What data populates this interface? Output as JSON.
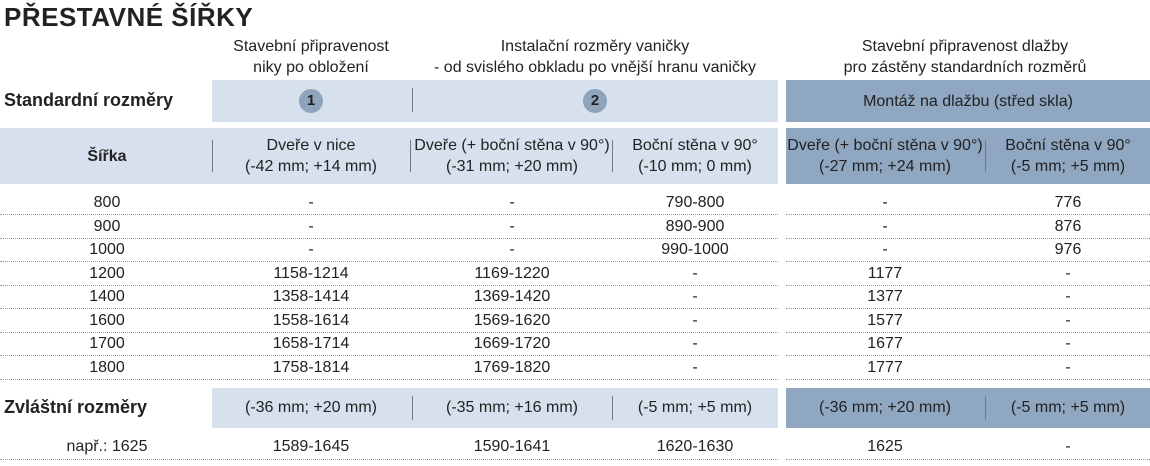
{
  "title": "PŘESTAVNÉ ŠÍŘKY",
  "groups": [
    [
      "Stavební připravenost",
      "niky po obložení"
    ],
    [
      "Instalační rozměry vaničky",
      "- od svislého obkladu po vnější hranu vaničky"
    ],
    [
      "Stavební připravenost dlažby",
      "pro zástěny standardních rozměrů"
    ]
  ],
  "standard": {
    "label": "Standardní rozměry",
    "markers": [
      "1",
      "2"
    ],
    "mount": "Montáž na dlažbu (střed skla)"
  },
  "header": {
    "width": "Šířka",
    "columns": [
      [
        "Dveře v nice",
        "(-42 mm; +14 mm)"
      ],
      [
        "Dveře (+ boční stěna v 90°)",
        "(-31 mm; +20 mm)"
      ],
      [
        "Boční stěna v 90°",
        "(-10 mm; 0 mm)"
      ],
      [
        "Dveře (+ boční stěna v 90°)",
        "(-27 mm; +24 mm)"
      ],
      [
        "Boční stěna v 90°",
        "(-5 mm; +5 mm)"
      ]
    ]
  },
  "rows": [
    [
      "800",
      "-",
      "-",
      "790-800",
      "-",
      "776"
    ],
    [
      "900",
      "-",
      "-",
      "890-900",
      "-",
      "876"
    ],
    [
      "1000",
      "-",
      "-",
      "990-1000",
      "-",
      "976"
    ],
    [
      "1200",
      "1158-1214",
      "1169-1220",
      "-",
      "1177",
      "-"
    ],
    [
      "1400",
      "1358-1414",
      "1369-1420",
      "-",
      "1377",
      "-"
    ],
    [
      "1600",
      "1558-1614",
      "1569-1620",
      "-",
      "1577",
      "-"
    ],
    [
      "1700",
      "1658-1714",
      "1669-1720",
      "-",
      "1677",
      "-"
    ],
    [
      "1800",
      "1758-1814",
      "1769-1820",
      "-",
      "1777",
      "-"
    ]
  ],
  "special": {
    "label": "Zvláštní rozměry",
    "values": [
      "(-36 mm; +20 mm)",
      "(-35 mm; +16 mm)",
      "(-5 mm; +5 mm)",
      "(-36 mm; +20 mm)",
      "(-5 mm; +5 mm)"
    ]
  },
  "example": [
    "např.: 1625",
    "1589-1645",
    "1590-1641",
    "1620-1630",
    "1625",
    "-"
  ]
}
